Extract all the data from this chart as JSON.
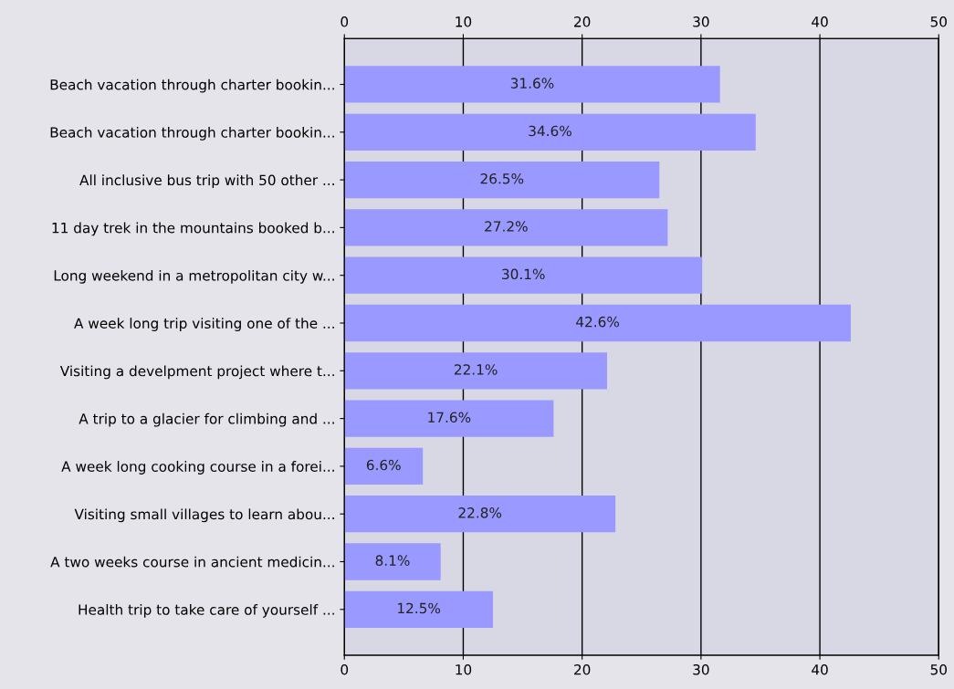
{
  "chart_data": {
    "type": "bar",
    "orientation": "horizontal",
    "categories": [
      "Beach vacation through charter bookin...",
      "Beach vacation through charter bookin...",
      "All inclusive bus trip with 50 other ...",
      "11 day trek in the mountains booked b...",
      "Long weekend in a metropolitan city w...",
      "A week long trip visiting one of the ...",
      "Visiting a develpment project where t...",
      "A trip to a glacier for climbing and ...",
      "A week long cooking course in a forei...",
      "Visiting small villages to learn abou...",
      "A two weeks course in ancient medicin...",
      "Health trip to take care of yourself ..."
    ],
    "values": [
      31.6,
      34.6,
      26.5,
      27.2,
      30.1,
      42.6,
      22.1,
      17.6,
      6.6,
      22.8,
      8.1,
      12.5
    ],
    "value_labels": [
      "31.6%",
      "34.6%",
      "26.5%",
      "27.2%",
      "30.1%",
      "42.6%",
      "22.1%",
      "17.6%",
      "6.6%",
      "22.8%",
      "8.1%",
      "12.5%"
    ],
    "color": "#9999ff",
    "xlim": [
      0,
      50
    ],
    "xticks": [
      0,
      10,
      20,
      30,
      40,
      50
    ],
    "x2lim": [
      0,
      50
    ],
    "x2ticks": [
      0,
      10,
      20,
      30,
      40,
      50
    ],
    "grid": "x"
  }
}
